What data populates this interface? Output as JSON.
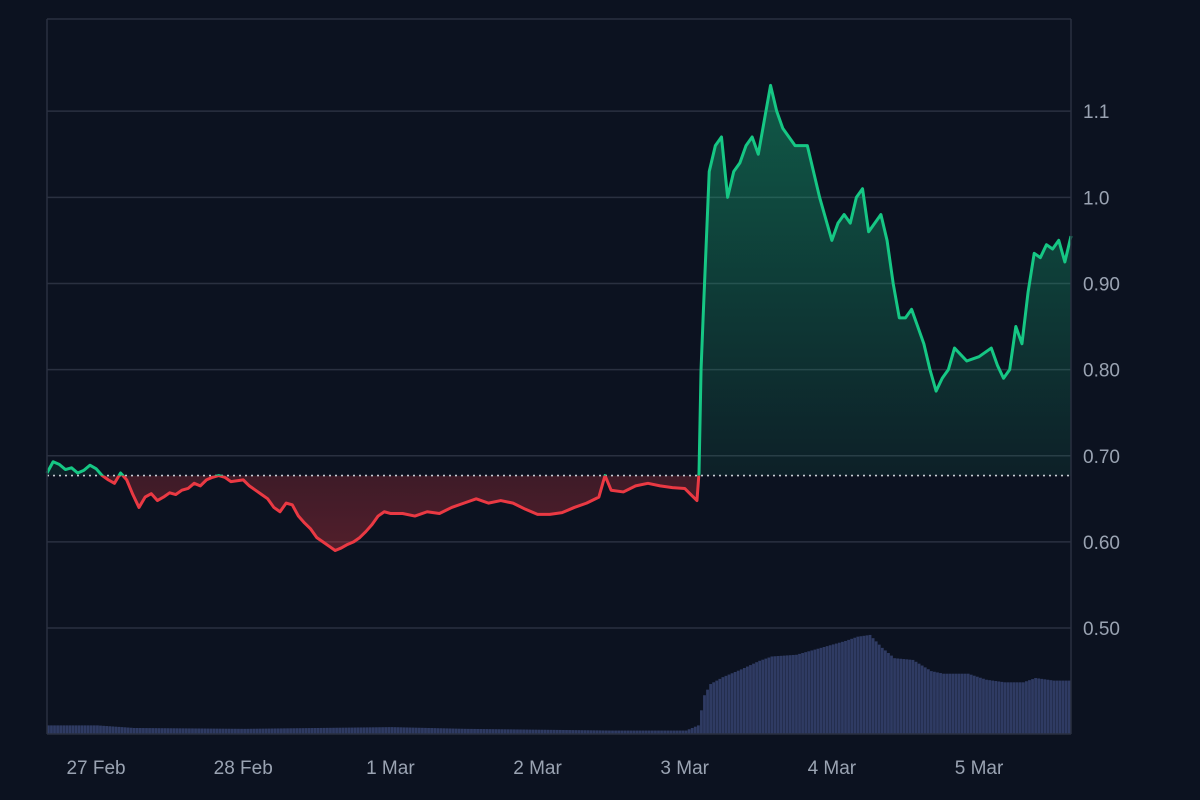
{
  "chart_data": {
    "type": "area",
    "baseline": 0.677,
    "y_ticks": [
      {
        "value": 1.1,
        "label": "1.1"
      },
      {
        "value": 1.0,
        "label": "1.0"
      },
      {
        "value": 0.9,
        "label": "0.90"
      },
      {
        "value": 0.8,
        "label": "0.80"
      },
      {
        "value": 0.7,
        "label": "0.70"
      },
      {
        "value": 0.6,
        "label": "0.60"
      },
      {
        "value": 0.5,
        "label": "0.50"
      }
    ],
    "x_ticks": [
      {
        "value": "2025-02-27",
        "label": "27 Feb"
      },
      {
        "value": "2025-02-28",
        "label": "28 Feb"
      },
      {
        "value": "2025-03-01",
        "label": "1 Mar"
      },
      {
        "value": "2025-03-02",
        "label": "2 Mar"
      },
      {
        "value": "2025-03-03",
        "label": "3 Mar"
      },
      {
        "value": "2025-03-04",
        "label": "4 Mar"
      },
      {
        "value": "2025-03-05",
        "label": "5 Mar"
      }
    ],
    "x_range": [
      "2025-02-26 16:00",
      "2025-03-05 15:00"
    ],
    "y_range": [
      0.377,
      1.207
    ],
    "grid": true,
    "colors": {
      "up": "#16c784",
      "down": "#ea3943",
      "volume": "#2f3b63",
      "grid": "#2a3040",
      "baseline": "#c8ccd4"
    },
    "price": [
      [
        "2025-02-26 16:00",
        0.68
      ],
      [
        "2025-02-26 17:00",
        0.693
      ],
      [
        "2025-02-26 18:00",
        0.69
      ],
      [
        "2025-02-26 19:00",
        0.684
      ],
      [
        "2025-02-26 20:00",
        0.686
      ],
      [
        "2025-02-26 21:00",
        0.68
      ],
      [
        "2025-02-26 22:00",
        0.683
      ],
      [
        "2025-02-26 23:00",
        0.689
      ],
      [
        "2025-02-27 00:00",
        0.685
      ],
      [
        "2025-02-27 01:00",
        0.677
      ],
      [
        "2025-02-27 02:00",
        0.672
      ],
      [
        "2025-02-27 03:00",
        0.668
      ],
      [
        "2025-02-27 04:00",
        0.68
      ],
      [
        "2025-02-27 05:00",
        0.672
      ],
      [
        "2025-02-27 06:00",
        0.655
      ],
      [
        "2025-02-27 07:00",
        0.64
      ],
      [
        "2025-02-27 08:00",
        0.652
      ],
      [
        "2025-02-27 09:00",
        0.656
      ],
      [
        "2025-02-27 10:00",
        0.648
      ],
      [
        "2025-02-27 11:00",
        0.652
      ],
      [
        "2025-02-27 12:00",
        0.657
      ],
      [
        "2025-02-27 13:00",
        0.655
      ],
      [
        "2025-02-27 14:00",
        0.66
      ],
      [
        "2025-02-27 15:00",
        0.662
      ],
      [
        "2025-02-27 16:00",
        0.668
      ],
      [
        "2025-02-27 17:00",
        0.665
      ],
      [
        "2025-02-27 18:00",
        0.672
      ],
      [
        "2025-02-27 19:00",
        0.675
      ],
      [
        "2025-02-27 20:00",
        0.677
      ],
      [
        "2025-02-27 21:00",
        0.675
      ],
      [
        "2025-02-27 22:00",
        0.67
      ],
      [
        "2025-02-28 00:00",
        0.672
      ],
      [
        "2025-02-28 01:00",
        0.665
      ],
      [
        "2025-02-28 02:00",
        0.66
      ],
      [
        "2025-02-28 03:00",
        0.655
      ],
      [
        "2025-02-28 04:00",
        0.65
      ],
      [
        "2025-02-28 05:00",
        0.64
      ],
      [
        "2025-02-28 06:00",
        0.635
      ],
      [
        "2025-02-28 07:00",
        0.645
      ],
      [
        "2025-02-28 08:00",
        0.643
      ],
      [
        "2025-02-28 09:00",
        0.63
      ],
      [
        "2025-02-28 10:00",
        0.622
      ],
      [
        "2025-02-28 11:00",
        0.615
      ],
      [
        "2025-02-28 12:00",
        0.605
      ],
      [
        "2025-02-28 13:00",
        0.6
      ],
      [
        "2025-02-28 14:00",
        0.595
      ],
      [
        "2025-02-28 15:00",
        0.59
      ],
      [
        "2025-02-28 16:00",
        0.593
      ],
      [
        "2025-02-28 17:00",
        0.597
      ],
      [
        "2025-02-28 18:00",
        0.6
      ],
      [
        "2025-02-28 19:00",
        0.605
      ],
      [
        "2025-02-28 20:00",
        0.612
      ],
      [
        "2025-02-28 21:00",
        0.62
      ],
      [
        "2025-02-28 22:00",
        0.63
      ],
      [
        "2025-02-28 23:00",
        0.635
      ],
      [
        "2025-03-01 00:00",
        0.633
      ],
      [
        "2025-03-01 02:00",
        0.633
      ],
      [
        "2025-03-01 04:00",
        0.63
      ],
      [
        "2025-03-01 06:00",
        0.635
      ],
      [
        "2025-03-01 08:00",
        0.633
      ],
      [
        "2025-03-01 10:00",
        0.64
      ],
      [
        "2025-03-01 12:00",
        0.645
      ],
      [
        "2025-03-01 14:00",
        0.65
      ],
      [
        "2025-03-01 16:00",
        0.645
      ],
      [
        "2025-03-01 18:00",
        0.648
      ],
      [
        "2025-03-01 20:00",
        0.645
      ],
      [
        "2025-03-01 22:00",
        0.638
      ],
      [
        "2025-03-02 00:00",
        0.632
      ],
      [
        "2025-03-02 02:00",
        0.632
      ],
      [
        "2025-03-02 04:00",
        0.634
      ],
      [
        "2025-03-02 06:00",
        0.64
      ],
      [
        "2025-03-02 08:00",
        0.645
      ],
      [
        "2025-03-02 10:00",
        0.652
      ],
      [
        "2025-03-02 11:00",
        0.677
      ],
      [
        "2025-03-02 12:00",
        0.66
      ],
      [
        "2025-03-02 14:00",
        0.658
      ],
      [
        "2025-03-02 16:00",
        0.665
      ],
      [
        "2025-03-02 18:00",
        0.668
      ],
      [
        "2025-03-02 20:00",
        0.665
      ],
      [
        "2025-03-02 22:00",
        0.663
      ],
      [
        "2025-03-03 00:00",
        0.662
      ],
      [
        "2025-03-03 01:00",
        0.655
      ],
      [
        "2025-03-03 02:00",
        0.648
      ],
      [
        "2025-03-03 02:20",
        0.68
      ],
      [
        "2025-03-03 02:40",
        0.8
      ],
      [
        "2025-03-03 03:00",
        0.86
      ],
      [
        "2025-03-03 04:00",
        1.03
      ],
      [
        "2025-03-03 05:00",
        1.06
      ],
      [
        "2025-03-03 06:00",
        1.07
      ],
      [
        "2025-03-03 07:00",
        1.0
      ],
      [
        "2025-03-03 08:00",
        1.03
      ],
      [
        "2025-03-03 09:00",
        1.04
      ],
      [
        "2025-03-03 10:00",
        1.06
      ],
      [
        "2025-03-03 11:00",
        1.07
      ],
      [
        "2025-03-03 12:00",
        1.05
      ],
      [
        "2025-03-03 13:00",
        1.09
      ],
      [
        "2025-03-03 14:00",
        1.13
      ],
      [
        "2025-03-03 15:00",
        1.1
      ],
      [
        "2025-03-03 16:00",
        1.08
      ],
      [
        "2025-03-03 17:00",
        1.07
      ],
      [
        "2025-03-03 18:00",
        1.06
      ],
      [
        "2025-03-03 20:00",
        1.06
      ],
      [
        "2025-03-03 22:00",
        1.0
      ],
      [
        "2025-03-04 00:00",
        0.95
      ],
      [
        "2025-03-04 01:00",
        0.97
      ],
      [
        "2025-03-04 02:00",
        0.98
      ],
      [
        "2025-03-04 03:00",
        0.97
      ],
      [
        "2025-03-04 04:00",
        1.0
      ],
      [
        "2025-03-04 05:00",
        1.01
      ],
      [
        "2025-03-04 06:00",
        0.96
      ],
      [
        "2025-03-04 07:00",
        0.97
      ],
      [
        "2025-03-04 08:00",
        0.98
      ],
      [
        "2025-03-04 09:00",
        0.95
      ],
      [
        "2025-03-04 10:00",
        0.9
      ],
      [
        "2025-03-04 11:00",
        0.86
      ],
      [
        "2025-03-04 12:00",
        0.86
      ],
      [
        "2025-03-04 13:00",
        0.87
      ],
      [
        "2025-03-04 14:00",
        0.85
      ],
      [
        "2025-03-04 15:00",
        0.83
      ],
      [
        "2025-03-04 16:00",
        0.8
      ],
      [
        "2025-03-04 17:00",
        0.775
      ],
      [
        "2025-03-04 18:00",
        0.79
      ],
      [
        "2025-03-04 19:00",
        0.8
      ],
      [
        "2025-03-04 20:00",
        0.825
      ],
      [
        "2025-03-04 22:00",
        0.81
      ],
      [
        "2025-03-05 00:00",
        0.815
      ],
      [
        "2025-03-05 02:00",
        0.825
      ],
      [
        "2025-03-05 03:00",
        0.805
      ],
      [
        "2025-03-05 04:00",
        0.79
      ],
      [
        "2025-03-05 05:00",
        0.8
      ],
      [
        "2025-03-05 06:00",
        0.85
      ],
      [
        "2025-03-05 07:00",
        0.83
      ],
      [
        "2025-03-05 08:00",
        0.89
      ],
      [
        "2025-03-05 09:00",
        0.935
      ],
      [
        "2025-03-05 10:00",
        0.93
      ],
      [
        "2025-03-05 11:00",
        0.945
      ],
      [
        "2025-03-05 12:00",
        0.94
      ],
      [
        "2025-03-05 13:00",
        0.95
      ],
      [
        "2025-03-05 14:00",
        0.925
      ],
      [
        "2025-03-05 15:00",
        0.955
      ]
    ],
    "volume": [
      [
        "2025-02-26 16:00",
        0.01
      ],
      [
        "2025-02-27 00:00",
        0.01
      ],
      [
        "2025-02-27 06:00",
        0.007
      ],
      [
        "2025-02-28 00:00",
        0.006
      ],
      [
        "2025-03-01 00:00",
        0.008
      ],
      [
        "2025-03-01 12:00",
        0.006
      ],
      [
        "2025-03-02 00:00",
        0.005
      ],
      [
        "2025-03-02 12:00",
        0.004
      ],
      [
        "2025-03-03 00:00",
        0.004
      ],
      [
        "2025-03-03 02:00",
        0.01
      ],
      [
        "2025-03-03 03:00",
        0.045
      ],
      [
        "2025-03-03 04:00",
        0.058
      ],
      [
        "2025-03-03 06:00",
        0.066
      ],
      [
        "2025-03-03 09:00",
        0.075
      ],
      [
        "2025-03-03 12:00",
        0.085
      ],
      [
        "2025-03-03 14:00",
        0.09
      ],
      [
        "2025-03-03 18:00",
        0.092
      ],
      [
        "2025-03-03 22:00",
        0.1
      ],
      [
        "2025-03-04 02:00",
        0.108
      ],
      [
        "2025-03-04 04:00",
        0.113
      ],
      [
        "2025-03-04 06:00",
        0.115
      ],
      [
        "2025-03-04 08:00",
        0.1
      ],
      [
        "2025-03-04 10:00",
        0.088
      ],
      [
        "2025-03-04 13:00",
        0.086
      ],
      [
        "2025-03-04 16:00",
        0.073
      ],
      [
        "2025-03-04 18:00",
        0.07
      ],
      [
        "2025-03-04 22:00",
        0.07
      ],
      [
        "2025-03-05 01:00",
        0.063
      ],
      [
        "2025-03-05 04:00",
        0.06
      ],
      [
        "2025-03-05 07:00",
        0.06
      ],
      [
        "2025-03-05 09:00",
        0.065
      ],
      [
        "2025-03-05 12:00",
        0.062
      ],
      [
        "2025-03-05 15:00",
        0.062
      ]
    ]
  }
}
